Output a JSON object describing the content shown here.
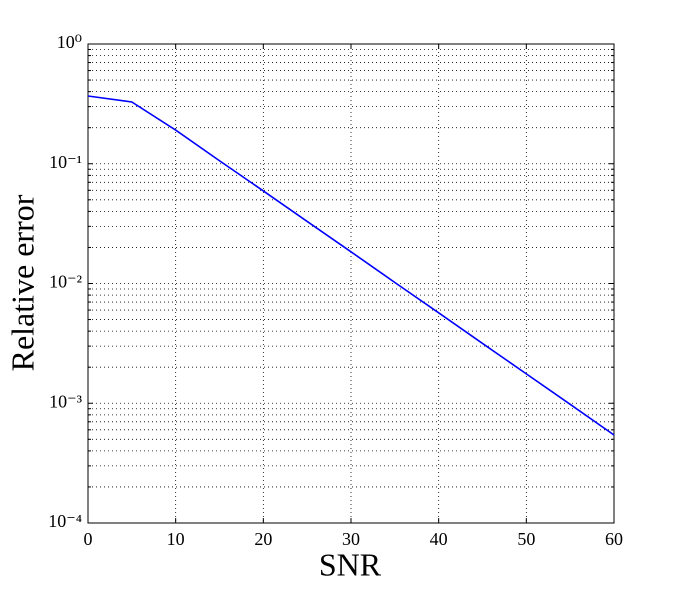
{
  "chart_data": {
    "type": "line",
    "x_label": "SNR",
    "y_label": "Relative error",
    "x": [
      0,
      5,
      10,
      15,
      20,
      25,
      30,
      35,
      40,
      45,
      50,
      55,
      60
    ],
    "series": [
      {
        "color": "#0000ff",
        "values": [
          0.368,
          0.328,
          0.191,
          0.106,
          0.0593,
          0.033,
          0.0184,
          0.0102,
          0.00569,
          0.00316,
          0.00176,
          0.00098,
          0.000543
        ]
      }
    ],
    "xlim": [
      0,
      60
    ],
    "xticks": [
      0,
      10,
      20,
      30,
      40,
      50,
      60
    ],
    "ylim": [
      0.0001,
      1
    ],
    "y_log": true,
    "yticks": [
      {
        "value": 0.0001,
        "label": "10⁻⁴"
      },
      {
        "value": 0.001,
        "label": "10⁻³"
      },
      {
        "value": 0.01,
        "label": "10⁻²"
      },
      {
        "value": 0.1,
        "label": "10⁻¹"
      },
      {
        "value": 1,
        "label": "10⁰"
      }
    ],
    "grid": true
  }
}
